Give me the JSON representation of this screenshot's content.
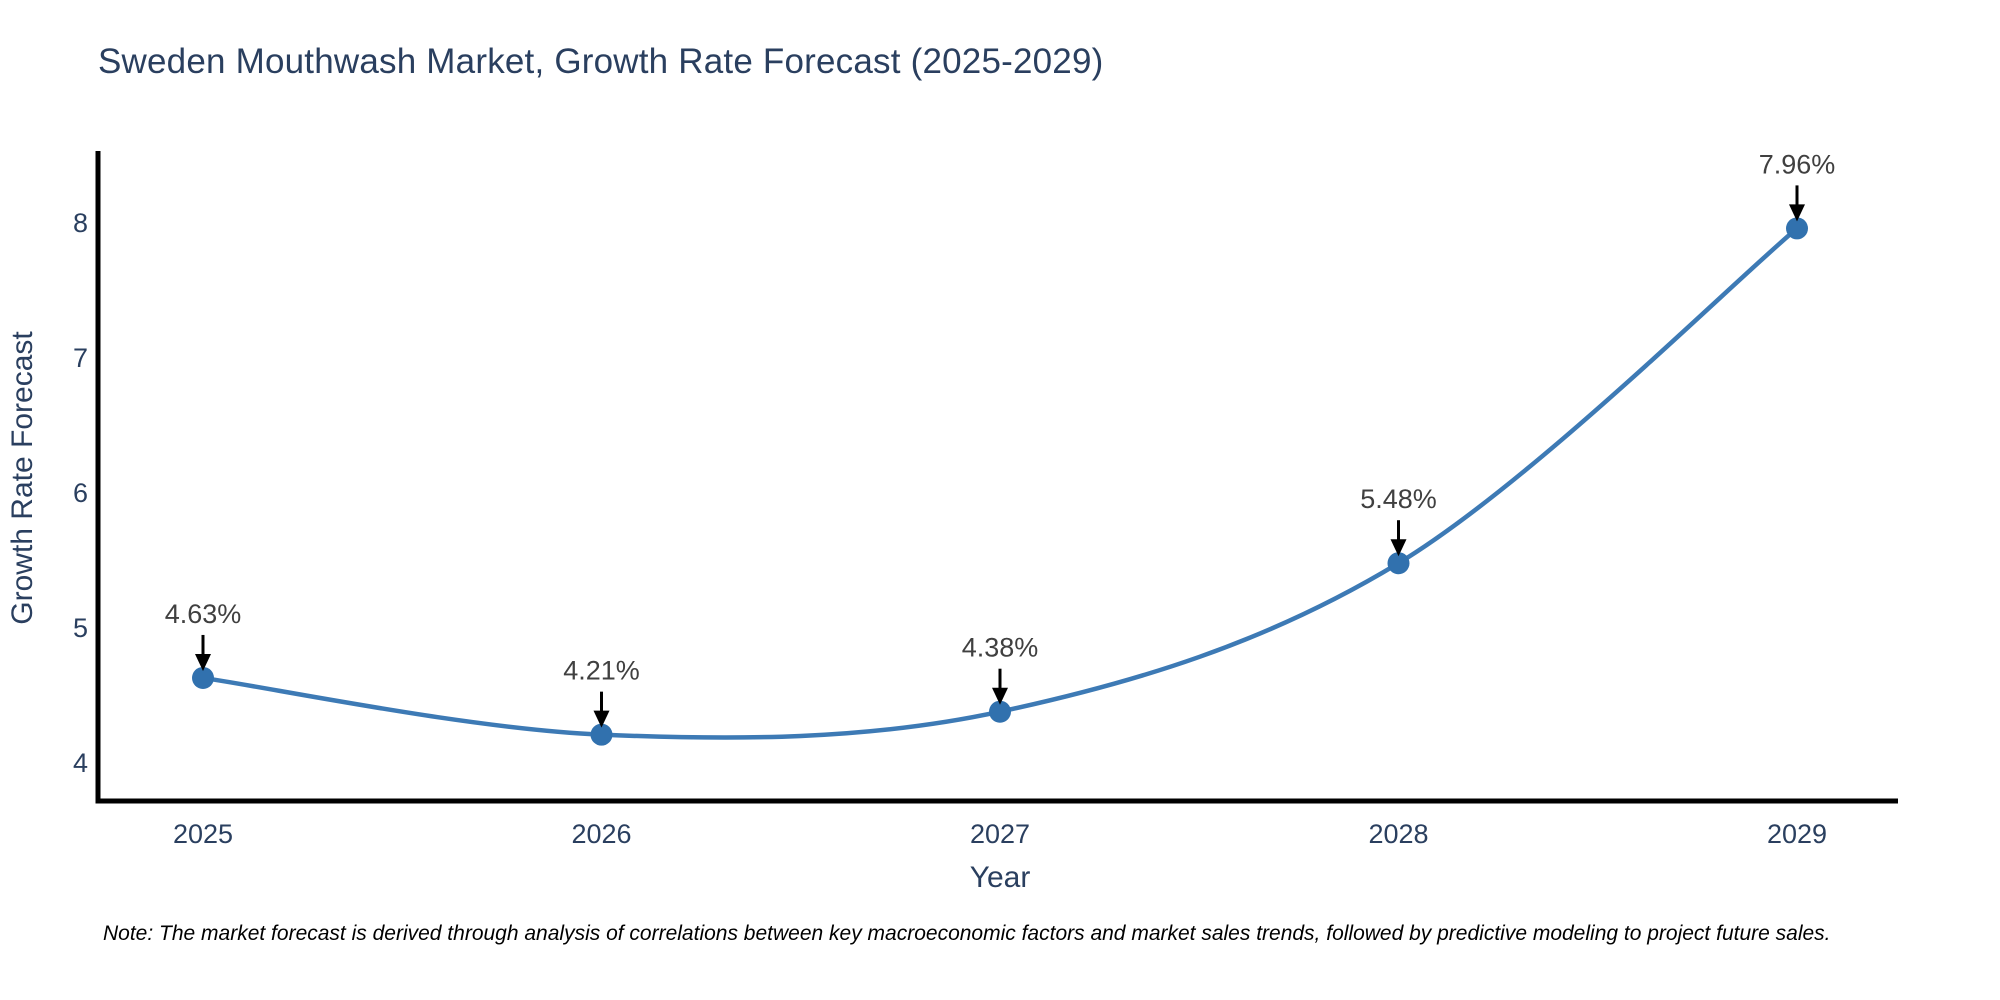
{
  "title": {
    "text": "Sweden Mouthwash Market, Growth Rate Forecast (2025-2029)",
    "color": "#2a3f5f"
  },
  "note": {
    "text": "Note: The market forecast is derived through analysis of correlations between key macroeconomic factors and market sales trends, followed by predictive modeling to project future sales."
  },
  "chart_data": {
    "type": "line",
    "title": "Sweden Mouthwash Market, Growth Rate Forecast (2025-2029)",
    "xlabel": "Year",
    "ylabel": "Growth Rate Forecast",
    "x": [
      2025,
      2026,
      2027,
      2028,
      2029
    ],
    "values": [
      4.63,
      4.21,
      4.38,
      5.48,
      7.96
    ],
    "point_labels": [
      "4.63%",
      "4.21%",
      "4.38%",
      "5.48%",
      "7.96%"
    ],
    "x_tick_labels": [
      "2025",
      "2026",
      "2027",
      "2028",
      "2029"
    ],
    "y_tick_labels": [
      "4",
      "5",
      "6",
      "7",
      "8"
    ],
    "y_ticks": [
      4,
      5,
      6,
      7,
      8
    ],
    "ylim": [
      3.7,
      8.53
    ],
    "xlim": [
      2024.8,
      2029.25
    ],
    "line_shape": "spline",
    "grid": false,
    "legend": "none",
    "annotation_style": "down-arrow",
    "line_color": "#3d7ab5",
    "marker_color": "#3171ae",
    "axis_color": "#000000",
    "text_color": "#2a3f5f"
  }
}
